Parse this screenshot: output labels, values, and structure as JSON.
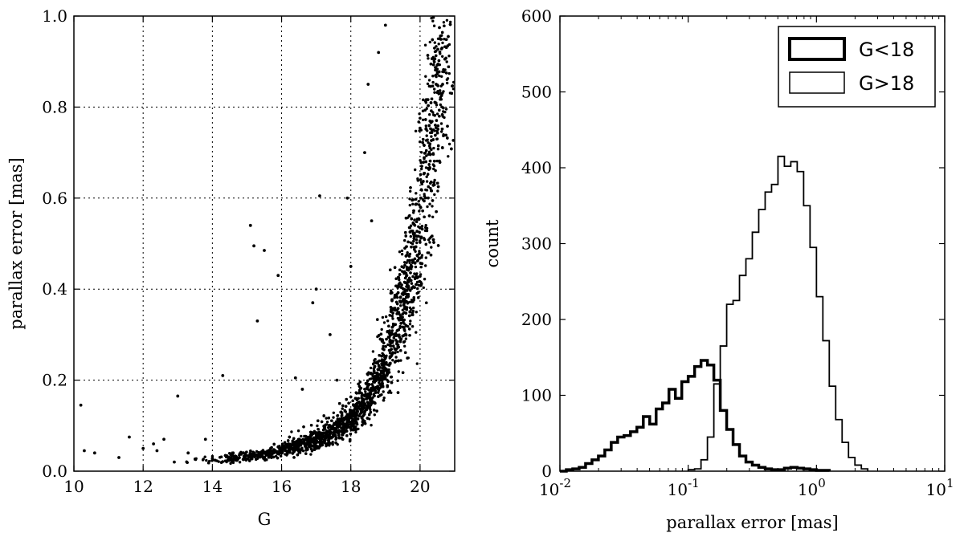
{
  "chart_data": [
    {
      "type": "scatter",
      "xlabel": "G",
      "ylabel": "parallax error [mas]",
      "xlim": [
        10,
        21
      ],
      "ylim": [
        0.0,
        1.0
      ],
      "grid": true,
      "x_ticks": [
        10,
        12,
        14,
        16,
        18,
        20
      ],
      "x_tick_labels": [
        "10",
        "12",
        "14",
        "16",
        "18",
        "20"
      ],
      "y_ticks": [
        0.0,
        0.2,
        0.4,
        0.6,
        0.8,
        1.0
      ],
      "y_tick_labels": [
        "0.0",
        "0.2",
        "0.4",
        "0.6",
        "0.8",
        "1.0"
      ],
      "marker_color": "#000000",
      "points": [
        [
          10.2,
          0.145
        ],
        [
          10.3,
          0.045
        ],
        [
          10.6,
          0.04
        ],
        [
          11.3,
          0.03
        ],
        [
          11.6,
          0.075
        ],
        [
          12.0,
          0.05
        ],
        [
          12.3,
          0.06
        ],
        [
          12.4,
          0.045
        ],
        [
          12.6,
          0.07
        ],
        [
          12.9,
          0.02
        ],
        [
          13.0,
          0.165
        ],
        [
          13.3,
          0.04
        ],
        [
          13.8,
          0.07
        ],
        [
          14.3,
          0.21
        ],
        [
          14.6,
          0.04
        ],
        [
          15.1,
          0.54
        ],
        [
          15.2,
          0.495
        ],
        [
          15.3,
          0.33
        ],
        [
          15.5,
          0.485
        ],
        [
          15.9,
          0.43
        ],
        [
          16.2,
          0.06
        ],
        [
          16.4,
          0.205
        ],
        [
          16.6,
          0.18
        ],
        [
          16.9,
          0.37
        ],
        [
          17.0,
          0.4
        ],
        [
          17.1,
          0.605
        ],
        [
          17.4,
          0.3
        ],
        [
          17.6,
          0.2
        ],
        [
          17.9,
          0.6
        ],
        [
          18.0,
          0.45
        ],
        [
          18.4,
          0.7
        ],
        [
          18.5,
          0.85
        ],
        [
          18.6,
          0.55
        ],
        [
          18.8,
          0.92
        ],
        [
          19.0,
          0.98
        ]
      ],
      "trend": {
        "description_source": "dense stellar locus",
        "g": [
          13.2,
          14.0,
          15.0,
          16.0,
          17.0,
          17.5,
          18.0,
          18.5,
          19.0,
          19.5,
          19.8,
          20.1,
          20.4,
          20.6,
          20.8
        ],
        "err": [
          0.022,
          0.025,
          0.03,
          0.045,
          0.068,
          0.088,
          0.115,
          0.16,
          0.24,
          0.36,
          0.46,
          0.6,
          0.78,
          0.9,
          1.0
        ]
      }
    },
    {
      "type": "histogram",
      "xlabel": "parallax error [mas]",
      "ylabel": "count",
      "xscale": "log",
      "xlim": [
        0.01,
        10
      ],
      "ylim": [
        0,
        600
      ],
      "grid": false,
      "x_ticks": [
        0.01,
        0.1,
        1,
        10
      ],
      "x_tick_labels": [
        {
          "base": "10",
          "exp": "-2"
        },
        {
          "base": "10",
          "exp": "-1"
        },
        {
          "base": "10",
          "exp": "0"
        },
        {
          "base": "10",
          "exp": "1"
        }
      ],
      "y_ticks": [
        0,
        100,
        200,
        300,
        400,
        500,
        600
      ],
      "y_tick_labels": [
        "0",
        "100",
        "200",
        "300",
        "400",
        "500",
        "600"
      ],
      "legend_position": "top-right",
      "bin_log_edges": {
        "start": -2.0,
        "width": 0.05
      },
      "series": [
        {
          "name": "G<18",
          "line_width": "thick",
          "color": "#000000",
          "start_bin": 0,
          "counts": [
            0,
            2,
            3,
            5,
            10,
            15,
            20,
            28,
            38,
            45,
            47,
            52,
            58,
            72,
            62,
            82,
            90,
            108,
            96,
            118,
            125,
            138,
            146,
            140,
            120,
            80,
            55,
            35,
            20,
            12,
            8,
            5,
            3,
            2,
            2,
            4,
            5,
            4,
            3,
            2,
            1,
            1
          ]
        },
        {
          "name": "G>18",
          "line_width": "thin",
          "color": "#000000",
          "start_bin": 20,
          "counts": [
            2,
            3,
            15,
            45,
            115,
            165,
            220,
            225,
            258,
            280,
            315,
            345,
            368,
            378,
            415,
            402,
            408,
            395,
            350,
            295,
            230,
            172,
            112,
            68,
            38,
            18,
            8,
            3
          ]
        }
      ]
    }
  ]
}
